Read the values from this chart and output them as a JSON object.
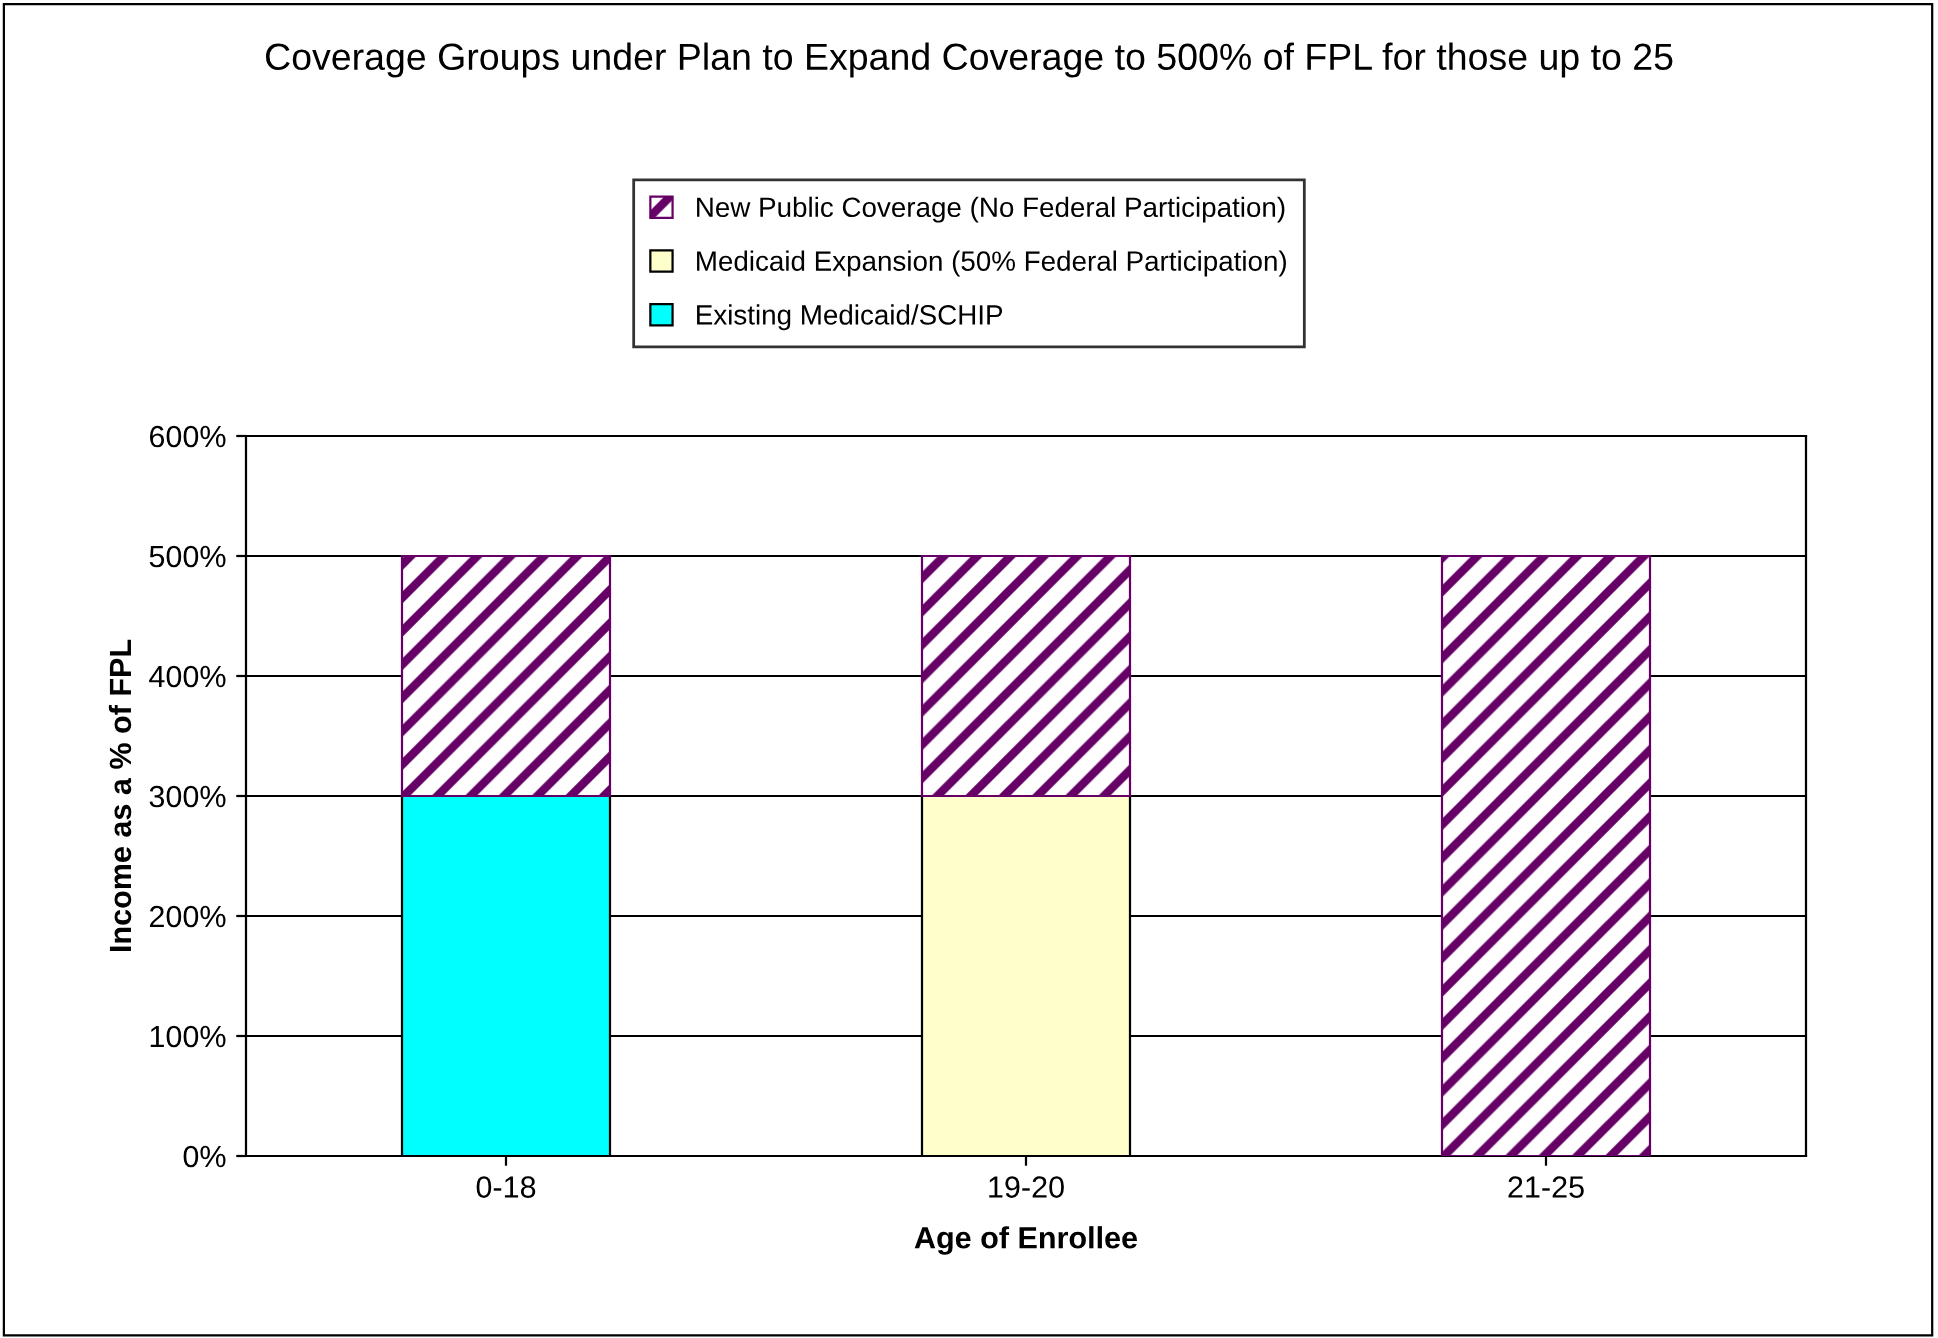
{
  "chart_data": {
    "type": "bar",
    "title": "Coverage Groups under Plan to Expand Coverage to 500% of FPL for those up to 25",
    "xlabel": "Age of Enrollee",
    "ylabel": "Income as a % of FPL",
    "categories": [
      "0-18",
      "19-20",
      "21-25"
    ],
    "stacked": true,
    "series": [
      {
        "name": "Existing Medicaid/SCHIP",
        "color": "#00ffff",
        "values": [
          300,
          null,
          null
        ]
      },
      {
        "name": "Medicaid Expansion (50% Federal Participation)",
        "color": "#ffffcc",
        "values": [
          null,
          300,
          null
        ]
      },
      {
        "name": "New Public Coverage (No Federal Participation)",
        "color": "#660066",
        "values": [
          200,
          200,
          500
        ]
      }
    ],
    "ylim": [
      0,
      600
    ],
    "yticks": [
      {
        "value": 0,
        "label": "0%"
      },
      {
        "value": 100,
        "label": "100%"
      },
      {
        "value": 200,
        "label": "200%"
      },
      {
        "value": 300,
        "label": "300%"
      },
      {
        "value": 400,
        "label": "400%"
      },
      {
        "value": 500,
        "label": "500%"
      },
      {
        "value": 600,
        "label": "600%"
      }
    ],
    "grid": "y",
    "legend": "top"
  }
}
